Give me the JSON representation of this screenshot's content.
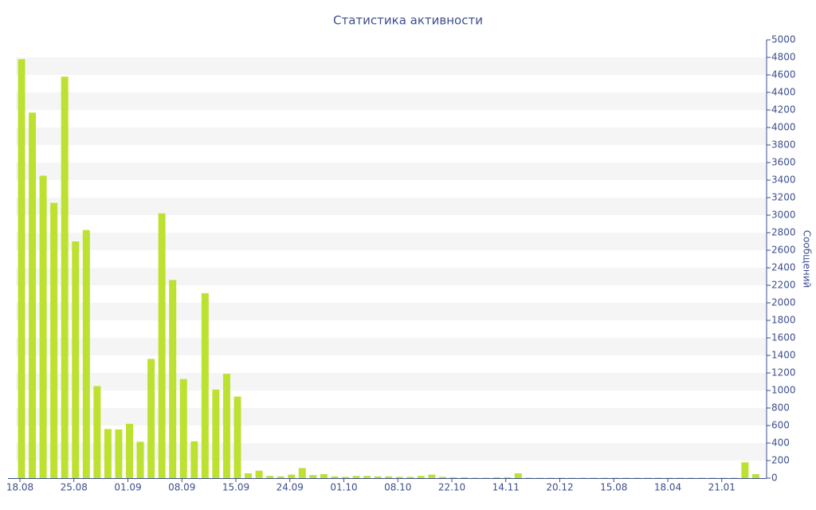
{
  "chart_data": {
    "type": "bar",
    "title": "Статистика активности",
    "y_label": "Сообщений",
    "categories": [
      "18.08",
      null,
      null,
      null,
      null,
      "25.08",
      null,
      null,
      null,
      null,
      "01.09",
      null,
      null,
      null,
      null,
      "08.09",
      null,
      null,
      null,
      null,
      "15.09",
      null,
      null,
      null,
      null,
      "24.09",
      null,
      null,
      null,
      null,
      "01.10",
      null,
      null,
      null,
      null,
      "08.10",
      null,
      null,
      null,
      null,
      "22.10",
      null,
      null,
      null,
      null,
      "14.11",
      null,
      null,
      null,
      null,
      "20.12",
      null,
      null,
      null,
      null,
      "15.08",
      null,
      null,
      null,
      null,
      "18.04",
      null,
      null,
      null,
      null,
      "21.01",
      null,
      null,
      null
    ],
    "values": [
      4780,
      4170,
      3450,
      3140,
      4580,
      2700,
      2830,
      1050,
      560,
      555,
      620,
      415,
      1360,
      3020,
      2260,
      1130,
      420,
      2110,
      1010,
      1190,
      930,
      55,
      85,
      25,
      20,
      40,
      115,
      35,
      45,
      20,
      15,
      25,
      25,
      20,
      20,
      15,
      15,
      25,
      40,
      15,
      10,
      10,
      5,
      5,
      10,
      10,
      55,
      5,
      5,
      5,
      5,
      5,
      5,
      5,
      5,
      5,
      5,
      5,
      5,
      5,
      5,
      5,
      5,
      5,
      5,
      5,
      5,
      180,
      45
    ],
    "color": "#bde130",
    "ylim": [
      0,
      5000
    ],
    "yticks": [
      0,
      200,
      400,
      600,
      800,
      1000,
      1200,
      1400,
      1600,
      1800,
      2000,
      2200,
      2400,
      2600,
      2800,
      3000,
      3200,
      3400,
      3600,
      3800,
      4000,
      4200,
      4400,
      4600,
      4800,
      5000
    ],
    "grid": true
  }
}
